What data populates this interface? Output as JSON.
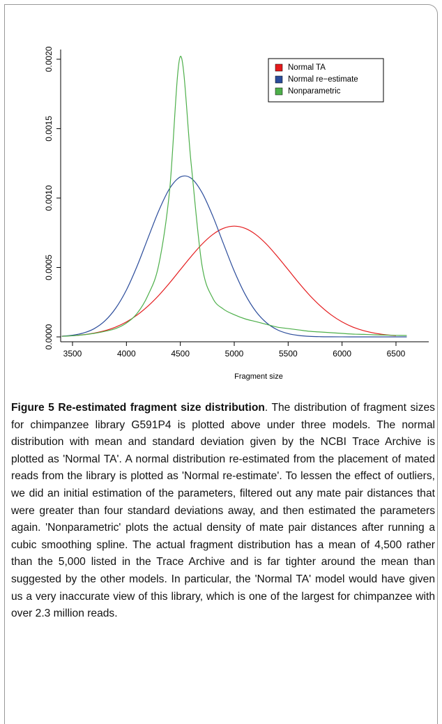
{
  "chart_data": {
    "type": "line",
    "x": [
      3400,
      3500,
      3600,
      3700,
      3800,
      3900,
      4000,
      4100,
      4200,
      4300,
      4400,
      4500,
      4600,
      4700,
      4800,
      4900,
      5000,
      5100,
      5200,
      5300,
      5400,
      5500,
      5600,
      5700,
      5800,
      5900,
      6000,
      6100,
      6200,
      6300,
      6400,
      6500,
      6600
    ],
    "series": [
      {
        "name": "Normal TA",
        "color": "#e41a1c",
        "values": [
          4.8e-06,
          8.9e-06,
          1.58e-05,
          2.72e-05,
          4.48e-05,
          7.09e-05,
          0.000108,
          0.000158,
          0.000222,
          0.000299,
          0.000388,
          0.000484,
          0.000579,
          0.000667,
          0.000737,
          0.000782,
          0.000798,
          0.000782,
          0.000737,
          0.000667,
          0.000579,
          0.000484,
          0.000388,
          0.000299,
          0.000222,
          0.000158,
          0.000108,
          7.09e-05,
          4.48e-05,
          2.72e-05,
          1.58e-05,
          8.9e-06,
          null
        ]
      },
      {
        "name": "Normal re−estimate",
        "color": "#2b4c9b",
        "values": [
          4.8e-06,
          1.2e-05,
          2.77e-05,
          5.88e-05,
          0.000115,
          0.000206,
          0.000338,
          0.000512,
          0.000712,
          0.000909,
          0.001068,
          0.001152,
          0.001143,
          0.001041,
          0.000872,
          0.000671,
          0.000474,
          0.000308,
          0.000184,
          0.000101,
          5.09e-05,
          2.36e-05,
          1.01e-05,
          3.9e-06,
          1.4e-06,
          5e-07,
          2e-07,
          1e-07,
          0,
          0,
          0,
          0,
          0
        ]
      },
      {
        "name": "Nonparametric",
        "color": "#4daf4a",
        "values": [
          4e-06,
          8e-06,
          1.5e-05,
          2.5e-05,
          4e-05,
          6e-05,
          0.0001,
          0.00017,
          0.0003,
          0.00052,
          0.00105,
          0.00202,
          0.00125,
          0.00052,
          0.00028,
          0.0002,
          0.00016,
          0.00013,
          0.00011,
          9e-05,
          7e-05,
          6e-05,
          5e-05,
          4e-05,
          3.5e-05,
          3e-05,
          2.5e-05,
          2e-05,
          1.8e-05,
          1.5e-05,
          1.3e-05,
          1.1e-05,
          1e-05
        ]
      }
    ],
    "x_label": "Fragment size",
    "xlim": [
      3390,
      6804
    ],
    "xticks": [
      3500,
      4000,
      4500,
      5000,
      5500,
      6000,
      6500
    ],
    "ylim": [
      -3.52e-05,
      0.00207
    ],
    "yticks": [
      {
        "value": 0,
        "label": "0.0000"
      },
      {
        "value": 0.0005,
        "label": "0.0005"
      },
      {
        "value": 0.001,
        "label": "0.0010"
      },
      {
        "value": 0.0015,
        "label": "0.0015"
      },
      {
        "value": 0.002,
        "label": "0.0020"
      }
    ],
    "legend": "top-right",
    "grid": false
  },
  "caption": {
    "label": "Figure 5",
    "title": "Re-estimated fragment size distribution",
    "text": ". The distribution of fragment sizes for chimpanzee library G591P4 is plotted above under three models. The normal distribution with mean and standard deviation given by the NCBI Trace Archive is plotted as 'Normal TA'. A normal distribution re-estimated from the placement of mated reads from the library is plotted as 'Normal re-estimate'. To lessen the effect of outliers, we did an initial estimation of the parameters, filtered out any mate pair distances that were greater than four standard deviations away, and then estimated the parameters again. 'Nonparametric' plots the actual density of mate pair distances after running a cubic smoothing spline. The actual fragment distribution has a mean of 4,500 rather than the 5,000 listed in the Trace Archive and is far tighter around the mean than suggested by the other models. In particular, the 'Normal TA' model would have given us a very inaccurate view of this library, which is one of the largest for chimpanzee with over 2.3 million reads."
  }
}
